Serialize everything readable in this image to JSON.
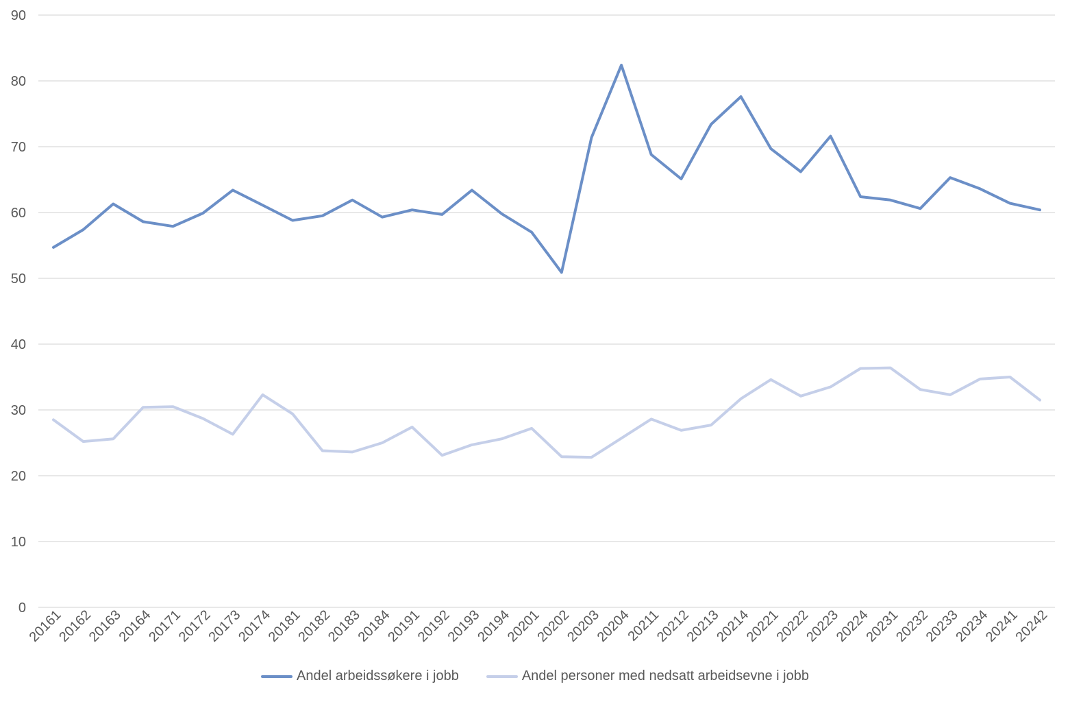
{
  "chart_data": {
    "type": "line",
    "title": "",
    "xlabel": "",
    "ylabel": "",
    "ylim": [
      0,
      90
    ],
    "yticks": [
      0,
      10,
      20,
      30,
      40,
      50,
      60,
      70,
      80,
      90
    ],
    "grid": true,
    "legend_position": "bottom",
    "categories": [
      "20161",
      "20162",
      "20163",
      "20164",
      "20171",
      "20172",
      "20173",
      "20174",
      "20181",
      "20182",
      "20183",
      "20184",
      "20191",
      "20192",
      "20193",
      "20194",
      "20201",
      "20202",
      "20203",
      "20204",
      "20211",
      "20212",
      "20213",
      "20214",
      "20221",
      "20222",
      "20223",
      "20224",
      "20231",
      "20232",
      "20233",
      "20234",
      "20241",
      "20242"
    ],
    "series": [
      {
        "name": "Andel arbeidssøkere i jobb",
        "color": "#6b8fc7",
        "values": [
          54.7,
          57.4,
          61.3,
          58.6,
          57.9,
          59.9,
          63.4,
          61.1,
          58.8,
          59.5,
          61.9,
          59.3,
          60.4,
          59.7,
          63.4,
          59.8,
          57.0,
          50.9,
          71.4,
          82.4,
          68.8,
          65.1,
          73.4,
          77.6,
          69.7,
          66.2,
          71.6,
          62.4,
          61.9,
          60.6,
          65.3,
          63.6,
          61.4,
          60.4
        ]
      },
      {
        "name": "Andel personer med nedsatt arbeidsevne i jobb",
        "color": "#c5cfe9",
        "values": [
          28.5,
          25.2,
          25.6,
          30.4,
          30.5,
          28.7,
          26.3,
          32.3,
          29.4,
          23.8,
          23.6,
          25.0,
          27.4,
          23.1,
          24.7,
          25.6,
          27.2,
          22.9,
          22.8,
          25.7,
          28.6,
          26.9,
          27.7,
          31.7,
          34.6,
          32.1,
          33.5,
          36.3,
          36.4,
          33.1,
          32.3,
          34.7,
          35.0,
          31.5
        ]
      }
    ]
  }
}
